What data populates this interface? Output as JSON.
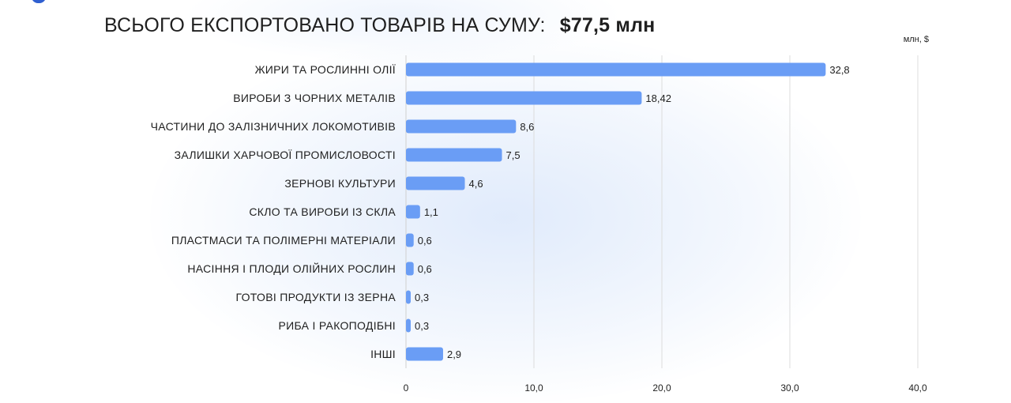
{
  "header": {
    "title": "ВСЬОГО ЕКСПОРТОВАНО ТОВАРІВ НА СУМУ:",
    "total": "$77,5 млн"
  },
  "chart_data": {
    "type": "bar",
    "orientation": "horizontal",
    "unit_label": "млн, $",
    "categories": [
      "ЖИРИ ТА РОСЛИННІ ОЛІЇ",
      "ВИРОБИ З ЧОРНИХ МЕТАЛІВ",
      "ЧАСТИНИ ДО ЗАЛІЗНИЧНИХ ЛОКОМОТИВІВ",
      "ЗАЛИШКИ ХАРЧОВОЇ ПРОМИСЛОВОСТІ",
      "ЗЕРНОВІ КУЛЬТУРИ",
      "СКЛО ТА ВИРОБИ ІЗ СКЛА",
      "ПЛАСТМАСИ ТА ПОЛІМЕРНІ МАТЕРІАЛИ",
      "НАСІННЯ І ПЛОДИ ОЛІЙНИХ РОСЛИН",
      "ГОТОВІ ПРОДУКТИ ІЗ ЗЕРНА",
      "РИБА І РАКОПОДІБНІ",
      "ІНШІ"
    ],
    "values": [
      32.8,
      18.42,
      8.6,
      7.5,
      4.6,
      1.1,
      0.6,
      0.6,
      0.3,
      0.3,
      2.9
    ],
    "value_labels": [
      "32,8",
      "18,42",
      "8,6",
      "7,5",
      "4,6",
      "1,1",
      "0,6",
      "0,6",
      "0,3",
      "0,3",
      "2,9"
    ],
    "xlim": [
      0,
      40
    ],
    "x_ticks": [
      0,
      10,
      20,
      30,
      40
    ],
    "x_tick_labels": [
      "0",
      "10,0",
      "20,0",
      "30,0",
      "40,0"
    ],
    "grid": true,
    "bar_color": "#6a9df5"
  }
}
